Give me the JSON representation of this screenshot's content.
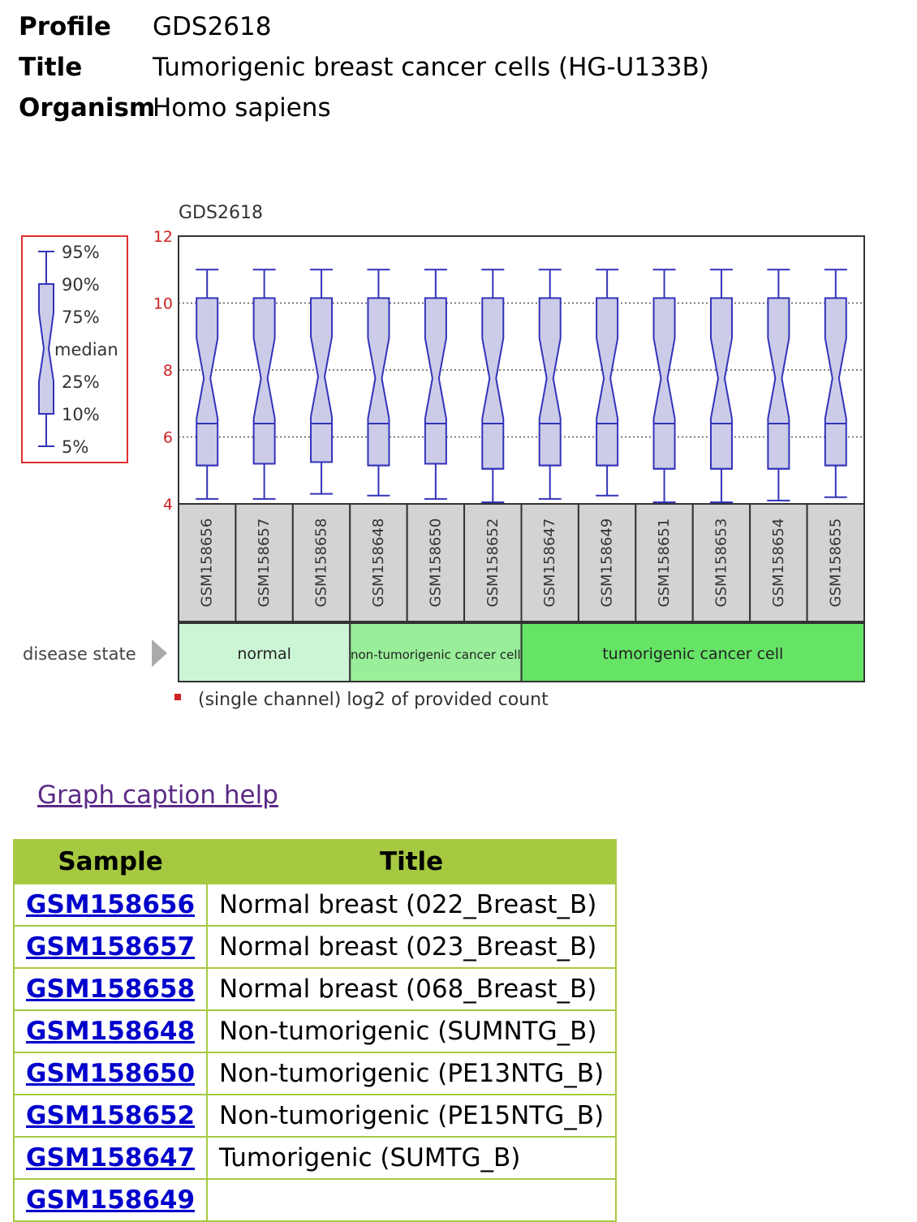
{
  "profile": {
    "profile_label": "Profile",
    "profile_value": "GDS2618",
    "title_label": "Title",
    "title_value": "Tumorigenic breast cancer cells (HG-U133B)",
    "organism_label": "Organism",
    "organism_value": "Homo sapiens"
  },
  "legend": {
    "labels": [
      "95%",
      "90%",
      "75%",
      "median",
      "25%",
      "10%",
      "5%"
    ]
  },
  "chart_data": {
    "type": "box",
    "title": "GDS2618",
    "ylim": [
      4,
      12
    ],
    "yticks": [
      4,
      6,
      8,
      10,
      12
    ],
    "grid": "dotted horizontal at 6, 8, 10",
    "categories": [
      "GSM158656",
      "GSM158657",
      "GSM158658",
      "GSM158648",
      "GSM158650",
      "GSM158652",
      "GSM158647",
      "GSM158649",
      "GSM158651",
      "GSM158653",
      "GSM158654",
      "GSM158655"
    ],
    "boxes": [
      {
        "p5": 4.15,
        "p10": 5.15,
        "p25": 6.4,
        "median": 7.75,
        "p75": 10.15,
        "p90": 10.15,
        "p95": 11.0
      },
      {
        "p5": 4.15,
        "p10": 5.2,
        "p25": 6.4,
        "median": 7.75,
        "p75": 10.15,
        "p90": 10.15,
        "p95": 11.0
      },
      {
        "p5": 4.3,
        "p10": 5.25,
        "p25": 6.4,
        "median": 7.8,
        "p75": 10.15,
        "p90": 10.15,
        "p95": 11.0
      },
      {
        "p5": 4.25,
        "p10": 5.15,
        "p25": 6.4,
        "median": 7.75,
        "p75": 10.15,
        "p90": 10.15,
        "p95": 11.0
      },
      {
        "p5": 4.15,
        "p10": 5.2,
        "p25": 6.4,
        "median": 7.75,
        "p75": 10.15,
        "p90": 10.15,
        "p95": 11.0
      },
      {
        "p5": 4.05,
        "p10": 5.05,
        "p25": 6.4,
        "median": 7.75,
        "p75": 10.15,
        "p90": 10.15,
        "p95": 11.0
      },
      {
        "p5": 4.15,
        "p10": 5.15,
        "p25": 6.4,
        "median": 7.75,
        "p75": 10.15,
        "p90": 10.15,
        "p95": 11.0
      },
      {
        "p5": 4.25,
        "p10": 5.15,
        "p25": 6.4,
        "median": 7.75,
        "p75": 10.15,
        "p90": 10.15,
        "p95": 11.0
      },
      {
        "p5": 4.05,
        "p10": 5.05,
        "p25": 6.4,
        "median": 7.75,
        "p75": 10.15,
        "p90": 10.15,
        "p95": 11.0
      },
      {
        "p5": 4.05,
        "p10": 5.05,
        "p25": 6.4,
        "median": 7.75,
        "p75": 10.15,
        "p90": 10.15,
        "p95": 11.0
      },
      {
        "p5": 4.1,
        "p10": 5.05,
        "p25": 6.4,
        "median": 7.75,
        "p75": 10.15,
        "p90": 10.15,
        "p95": 11.0
      },
      {
        "p5": 4.2,
        "p10": 5.15,
        "p25": 6.4,
        "median": 7.75,
        "p75": 10.15,
        "p90": 10.15,
        "p95": 11.0
      }
    ],
    "box_fill": "#cccce8",
    "box_stroke": "#3333bb",
    "groups_label": "disease state",
    "groups": [
      {
        "label": "normal",
        "count": 3,
        "color": "#ccf5d5"
      },
      {
        "label": "non-tumorigenic cancer cell",
        "count": 3,
        "color": "#99ee99"
      },
      {
        "label": "tumorigenic cancer cell",
        "count": 6,
        "color": "#66e466"
      }
    ],
    "note": "(single channel) log2 of provided count"
  },
  "caption_link": "Graph caption help",
  "table": {
    "headers": [
      "Sample",
      "Title"
    ],
    "rows": [
      [
        "GSM158656",
        "Normal breast (022_Breast_B)"
      ],
      [
        "GSM158657",
        "Normal breast (023_Breast_B)"
      ],
      [
        "GSM158658",
        "Normal breast (068_Breast_B)"
      ],
      [
        "GSM158648",
        "Non-tumorigenic (SUMNTG_B)"
      ],
      [
        "GSM158650",
        "Non-tumorigenic (PE13NTG_B)"
      ],
      [
        "GSM158652",
        "Non-tumorigenic (PE15NTG_B)"
      ],
      [
        "GSM158647",
        "Tumorigenic (SUMTG_B)"
      ],
      [
        "GSM158649",
        ""
      ]
    ]
  }
}
